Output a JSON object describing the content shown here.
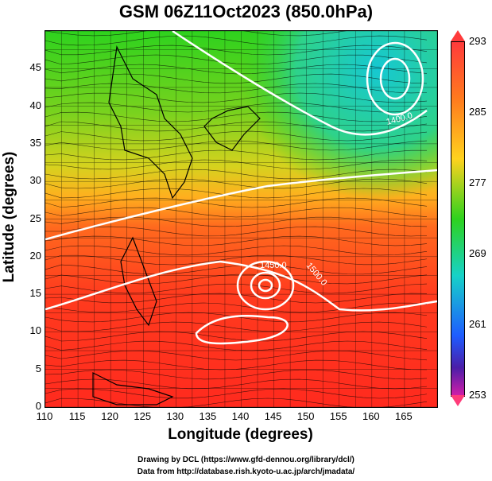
{
  "title": "GSM 06Z11Oct2023 (850.0hPa)",
  "xlabel": "Longitude (degrees)",
  "ylabel": "Latitude  (degrees)",
  "xticks": [
    "110",
    "115",
    "120",
    "125",
    "130",
    "135",
    "140",
    "145",
    "150",
    "155",
    "160",
    "165"
  ],
  "yticks": [
    "45",
    "40",
    "35",
    "30",
    "25",
    "20",
    "15",
    "10",
    "5",
    "0"
  ],
  "colorbar_ticks": [
    "293",
    "285",
    "277",
    "269",
    "261",
    "253"
  ],
  "contour_labels": [
    "1500.0",
    "1450.0",
    "1400.0"
  ],
  "credits": {
    "line1": "Drawing by DCL (https://www.gfd-dennou.org/library/dcl/)",
    "line2": "Data from http://database.rish.kyoto-u.ac.jp/arch/jmadata/"
  },
  "colors": {
    "warm": "#ff3b1e",
    "mid": "#2ed21e",
    "cool": "#16d2c8",
    "coastline": "#000000",
    "contour": "#ffffff"
  }
}
